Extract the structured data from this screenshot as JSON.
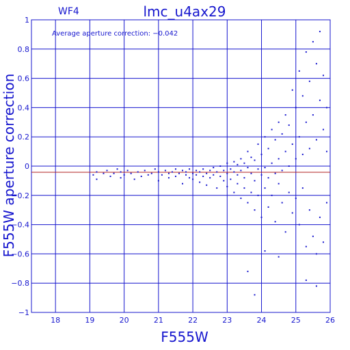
{
  "chart_data": {
    "type": "scatter",
    "title": "lmc_u4ax29",
    "subtitle": "WF4",
    "xlabel": "F555W",
    "ylabel": "F555W aperture correction",
    "annotation": "Average aperture correction: −0.042",
    "xlim": [
      17.3,
      26.0
    ],
    "ylim": [
      -1.0,
      1.0
    ],
    "grid": true,
    "x_ticks": [
      "18",
      "19",
      "20",
      "21",
      "22",
      "23",
      "24",
      "25",
      "26"
    ],
    "y_ticks": [
      "1",
      "0.8",
      "0.6",
      "0.4",
      "0.2",
      "0",
      "−0.2",
      "−0.4",
      "−0.6",
      "−0.8",
      "−1"
    ],
    "reference_line": {
      "y": -0.042,
      "label": "Average aperture correction"
    },
    "colors": {
      "axes": "#1515ce",
      "points": "#1515ce",
      "reference": "#b02020"
    },
    "points": [
      [
        19.1,
        -0.06
      ],
      [
        19.2,
        -0.04
      ],
      [
        19.2,
        -0.09
      ],
      [
        19.4,
        -0.05
      ],
      [
        19.5,
        -0.03
      ],
      [
        19.6,
        -0.07
      ],
      [
        19.7,
        -0.05
      ],
      [
        19.8,
        -0.02
      ],
      [
        19.9,
        -0.08
      ],
      [
        19.9,
        -0.04
      ],
      [
        20.0,
        -0.06
      ],
      [
        20.1,
        -0.03
      ],
      [
        20.2,
        -0.05
      ],
      [
        20.3,
        -0.09
      ],
      [
        20.4,
        -0.04
      ],
      [
        20.5,
        -0.07
      ],
      [
        20.6,
        -0.03
      ],
      [
        20.7,
        -0.06
      ],
      [
        20.8,
        -0.05
      ],
      [
        20.9,
        -0.02
      ],
      [
        21.0,
        -0.04
      ],
      [
        21.0,
        -0.1
      ],
      [
        21.1,
        -0.06
      ],
      [
        21.2,
        -0.03
      ],
      [
        21.3,
        -0.05
      ],
      [
        21.3,
        -0.08
      ],
      [
        21.4,
        -0.04
      ],
      [
        21.5,
        -0.07
      ],
      [
        21.5,
        -0.02
      ],
      [
        21.6,
        -0.05
      ],
      [
        21.7,
        -0.03
      ],
      [
        21.7,
        -0.12
      ],
      [
        21.8,
        -0.06
      ],
      [
        21.8,
        -0.04
      ],
      [
        21.9,
        -0.08
      ],
      [
        21.9,
        -0.02
      ],
      [
        22.0,
        -0.05
      ],
      [
        22.0,
        -0.09
      ],
      [
        22.1,
        -0.03
      ],
      [
        22.1,
        -0.06
      ],
      [
        22.2,
        -0.04
      ],
      [
        22.2,
        -0.11
      ],
      [
        22.3,
        -0.02
      ],
      [
        22.3,
        -0.07
      ],
      [
        22.4,
        -0.05
      ],
      [
        22.4,
        -0.13
      ],
      [
        22.5,
        -0.03
      ],
      [
        22.5,
        -0.08
      ],
      [
        22.6,
        -0.01
      ],
      [
        22.6,
        -0.06
      ],
      [
        22.7,
        -0.04
      ],
      [
        22.7,
        -0.15
      ],
      [
        22.8,
        0.0
      ],
      [
        22.8,
        -0.07
      ],
      [
        22.9,
        -0.03
      ],
      [
        22.9,
        -0.1
      ],
      [
        23.0,
        -0.05
      ],
      [
        23.0,
        0.02
      ],
      [
        23.0,
        -0.14
      ],
      [
        23.1,
        -0.02
      ],
      [
        23.1,
        -0.09
      ],
      [
        23.2,
        -0.04
      ],
      [
        23.2,
        0.03
      ],
      [
        23.2,
        -0.18
      ],
      [
        23.3,
        -0.06
      ],
      [
        23.3,
        0.01
      ],
      [
        23.3,
        -0.12
      ],
      [
        23.4,
        -0.03
      ],
      [
        23.4,
        0.05
      ],
      [
        23.4,
        -0.22
      ],
      [
        23.5,
        -0.08
      ],
      [
        23.5,
        0.02
      ],
      [
        23.5,
        -0.15
      ],
      [
        23.6,
        -0.01
      ],
      [
        23.6,
        0.1
      ],
      [
        23.6,
        -0.25
      ],
      [
        23.7,
        -0.05
      ],
      [
        23.7,
        0.06
      ],
      [
        23.7,
        -0.18
      ],
      [
        23.8,
        -0.1
      ],
      [
        23.8,
        0.04
      ],
      [
        23.8,
        -0.3
      ],
      [
        23.9,
        -0.02
      ],
      [
        23.9,
        0.15
      ],
      [
        23.9,
        -0.2
      ],
      [
        24.0,
        -0.06
      ],
      [
        24.0,
        0.08
      ],
      [
        24.0,
        -0.35
      ],
      [
        24.1,
        -0.01
      ],
      [
        24.1,
        0.2
      ],
      [
        24.1,
        -0.15
      ],
      [
        24.2,
        -0.08
      ],
      [
        24.2,
        0.12
      ],
      [
        24.2,
        -0.28
      ],
      [
        24.3,
        0.02
      ],
      [
        24.3,
        0.25
      ],
      [
        24.3,
        -0.2
      ],
      [
        24.4,
        -0.05
      ],
      [
        24.4,
        0.18
      ],
      [
        24.4,
        -0.38
      ],
      [
        24.5,
        0.05
      ],
      [
        24.5,
        0.3
      ],
      [
        24.5,
        -0.12
      ],
      [
        24.6,
        -0.03
      ],
      [
        24.6,
        0.22
      ],
      [
        24.6,
        -0.25
      ],
      [
        24.7,
        0.1
      ],
      [
        24.7,
        0.35
      ],
      [
        24.7,
        -0.45
      ],
      [
        24.8,
        0.0
      ],
      [
        24.8,
        0.28
      ],
      [
        24.8,
        -0.18
      ],
      [
        24.9,
        0.15
      ],
      [
        24.9,
        0.52
      ],
      [
        24.9,
        -0.32
      ],
      [
        25.0,
        0.05
      ],
      [
        25.0,
        0.4
      ],
      [
        25.0,
        -0.22
      ],
      [
        25.1,
        0.2
      ],
      [
        25.1,
        0.65
      ],
      [
        25.1,
        -0.4
      ],
      [
        25.2,
        0.08
      ],
      [
        25.2,
        0.48
      ],
      [
        25.2,
        -0.15
      ],
      [
        25.3,
        0.3
      ],
      [
        25.3,
        0.78
      ],
      [
        25.3,
        -0.55
      ],
      [
        25.4,
        0.12
      ],
      [
        25.4,
        0.58
      ],
      [
        25.4,
        -0.3
      ],
      [
        25.5,
        0.35
      ],
      [
        25.5,
        0.85
      ],
      [
        25.5,
        -0.48
      ],
      [
        25.6,
        0.18
      ],
      [
        25.6,
        0.7
      ],
      [
        25.6,
        -0.6
      ],
      [
        25.7,
        0.45
      ],
      [
        25.7,
        0.92
      ],
      [
        25.7,
        -0.35
      ],
      [
        25.8,
        0.25
      ],
      [
        25.8,
        0.62
      ],
      [
        25.8,
        -0.52
      ],
      [
        25.9,
        0.1
      ],
      [
        25.9,
        0.4
      ],
      [
        25.9,
        -0.25
      ],
      [
        23.6,
        -0.72
      ],
      [
        23.8,
        -0.88
      ],
      [
        24.5,
        -0.62
      ],
      [
        25.3,
        -0.78
      ],
      [
        25.6,
        -0.82
      ],
      [
        24.1,
        -0.58
      ]
    ]
  }
}
